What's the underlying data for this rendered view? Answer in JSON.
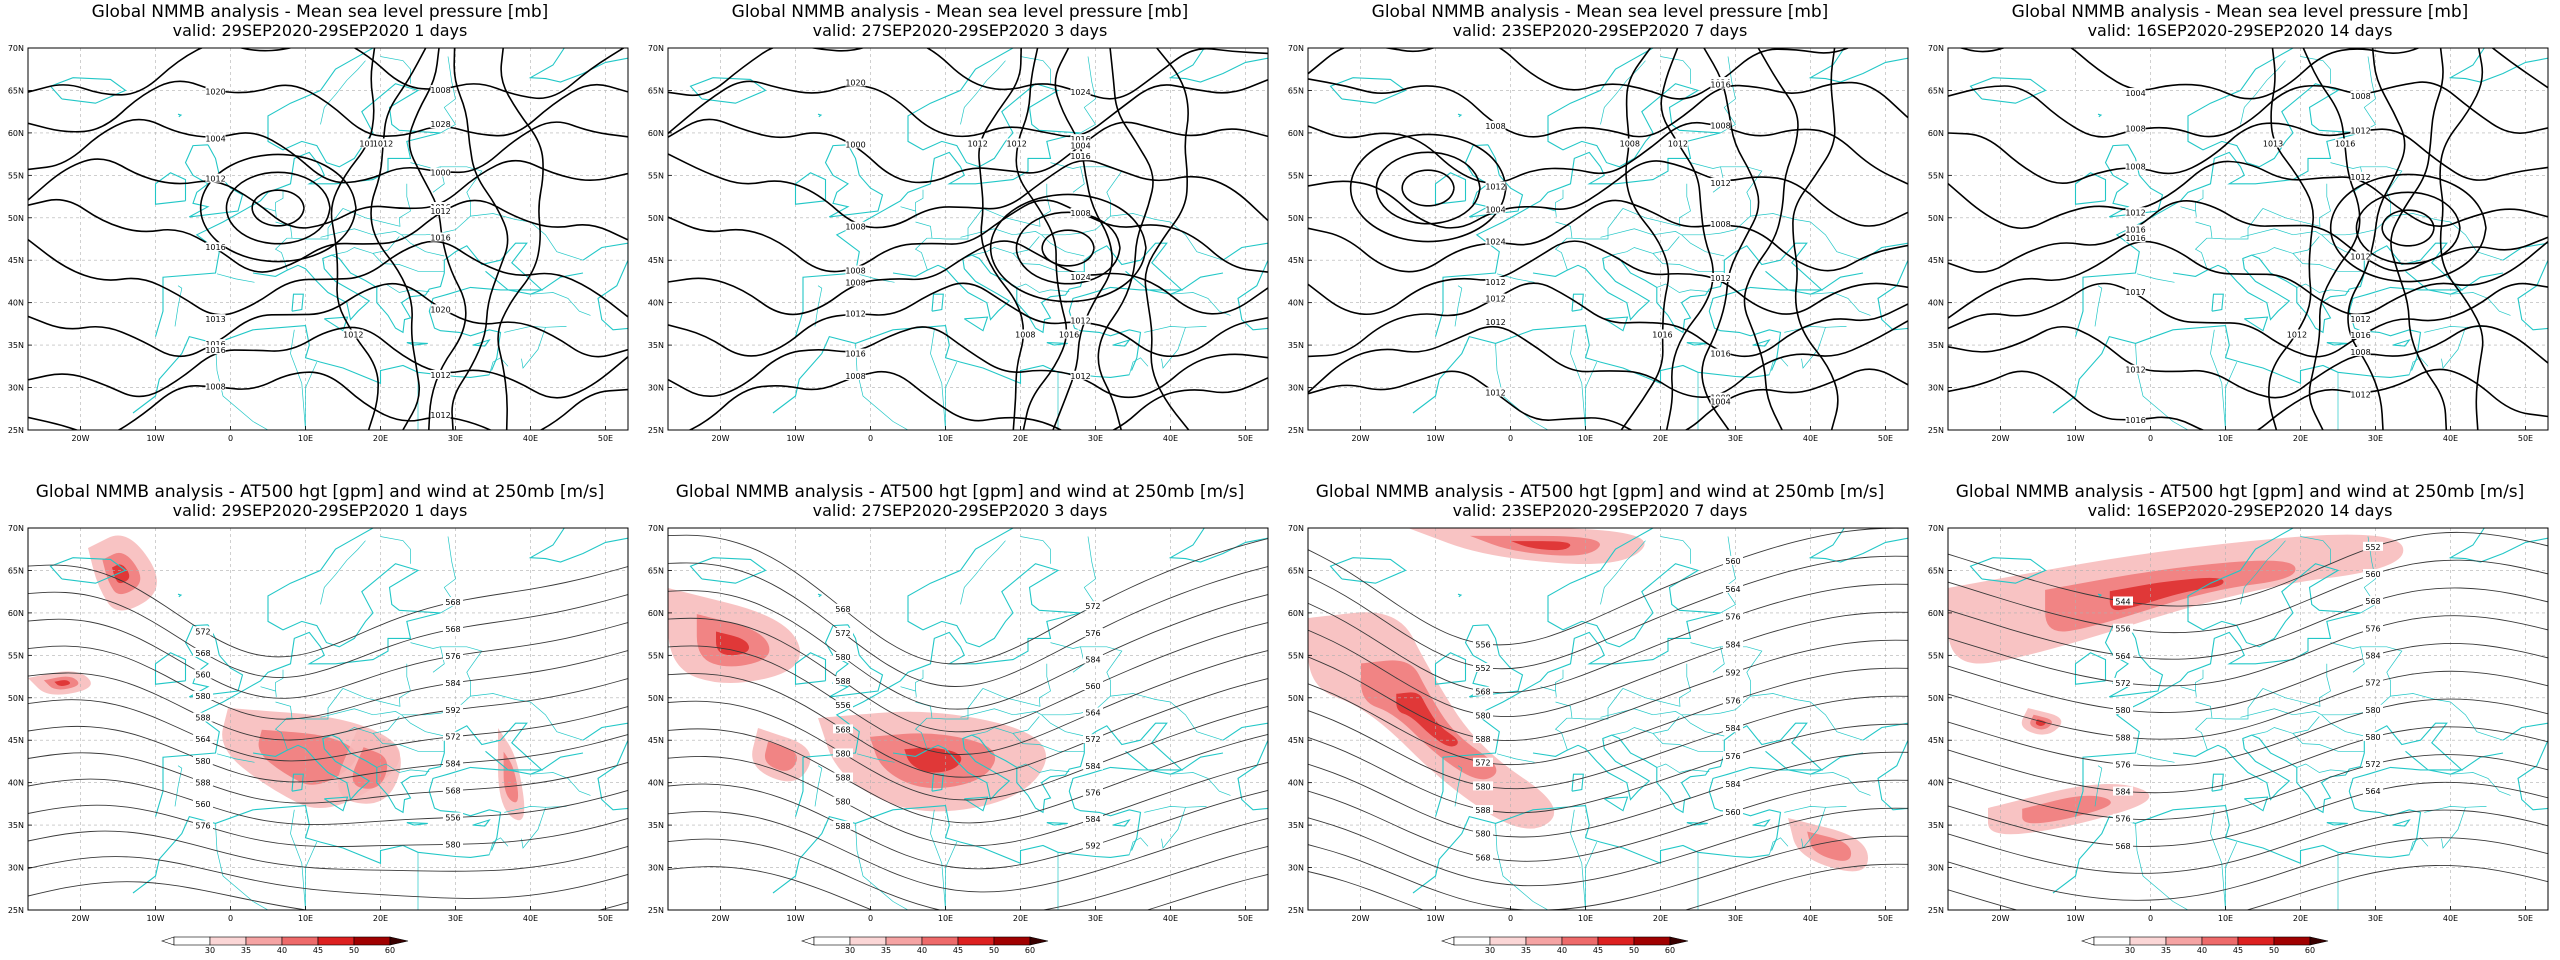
{
  "panels": [
    {
      "id": "p1",
      "title": "Global NMMB analysis - Mean sea level pressure [mb]",
      "subtitle": "valid: 29SEP2020-29SEP2020   1 days",
      "type": "mslp",
      "labels": [
        "1008",
        "1020",
        "1028",
        "1004",
        "1000",
        "1012",
        "1016",
        "1016",
        "1012",
        "1013",
        "1016",
        "1016",
        "1020",
        "1016",
        "1012",
        "1008",
        "1012",
        "1016",
        "1012",
        "1012"
      ]
    },
    {
      "id": "p2",
      "title": "Global NMMB analysis - Mean sea level pressure [mb]",
      "subtitle": "valid: 27SEP2020-29SEP2020   3 days",
      "type": "mslp",
      "labels": [
        "1024",
        "1020",
        "1016",
        "1000",
        "1004",
        "1008",
        "1016",
        "1008",
        "1008",
        "1008",
        "1024",
        "1012",
        "1012",
        "1016",
        "1012",
        "1008",
        "1012",
        "1008",
        "1012",
        "1016"
      ]
    },
    {
      "id": "p3",
      "title": "Global NMMB analysis - Mean sea level pressure [mb]",
      "subtitle": "valid: 23SEP2020-29SEP2020   7 days",
      "type": "mslp",
      "labels": [
        "1024",
        "1008",
        "1016",
        "1012",
        "1008",
        "1004",
        "1012",
        "1024",
        "1008",
        "1012",
        "1012",
        "1012",
        "1016",
        "1012",
        "1008",
        "1012",
        "1004",
        "1008",
        "1016",
        "1012"
      ]
    },
    {
      "id": "p4",
      "title": "Global NMMB analysis - Mean sea level pressure [mb]",
      "subtitle": "valid: 16SEP2020-29SEP2020   14 days",
      "type": "mslp",
      "labels": [
        "1004",
        "1008",
        "1008",
        "1008",
        "1012",
        "1012",
        "1012",
        "1016",
        "1012",
        "1016",
        "1012",
        "1017",
        "1016",
        "1012",
        "1008",
        "1016",
        "1012",
        "1013",
        "1012",
        "1016"
      ]
    },
    {
      "id": "p5",
      "title": "Global NMMB analysis - AT500 hgt [gpm] and wind at 250mb [m/s]",
      "subtitle": "valid: 29SEP2020-29SEP2020   1 days",
      "type": "z500",
      "labels": [
        "572",
        "568",
        "568",
        "568",
        "560",
        "576",
        "580",
        "584",
        "588",
        "592",
        "564",
        "572",
        "580",
        "584",
        "588",
        "568",
        "560",
        "556",
        "576",
        "580"
      ]
    },
    {
      "id": "p6",
      "title": "Global NMMB analysis - AT500 hgt [gpm] and wind at 250mb [m/s]",
      "subtitle": "valid: 27SEP2020-29SEP2020   3 days",
      "type": "z500",
      "labels": [
        "568",
        "572",
        "572",
        "576",
        "580",
        "584",
        "588",
        "560",
        "556",
        "564",
        "568",
        "572",
        "580",
        "584",
        "588",
        "576",
        "580",
        "584",
        "588",
        "592"
      ]
    },
    {
      "id": "p7",
      "title": "Global NMMB analysis - AT500 hgt [gpm] and wind at 250mb [m/s]",
      "subtitle": "valid: 23SEP2020-29SEP2020   7 days",
      "type": "z500",
      "labels": [
        "556",
        "560",
        "552",
        "564",
        "568",
        "576",
        "580",
        "584",
        "588",
        "592",
        "572",
        "576",
        "580",
        "584",
        "588",
        "576",
        "580",
        "584",
        "568",
        "560"
      ]
    },
    {
      "id": "p8",
      "title": "Global NMMB analysis - AT500 hgt [gpm] and wind at 250mb [m/s]",
      "subtitle": "valid: 16SEP2020-29SEP2020   14 days",
      "type": "z500",
      "labels": [
        "544",
        "552",
        "556",
        "560",
        "564",
        "568",
        "572",
        "576",
        "580",
        "584",
        "588",
        "572",
        "576",
        "580",
        "584",
        "580",
        "576",
        "572",
        "568",
        "564"
      ]
    }
  ],
  "lat_ticks": [
    "70N",
    "65N",
    "60N",
    "55N",
    "50N",
    "45N",
    "40N",
    "35N",
    "30N",
    "25N"
  ],
  "lon_ticks": [
    "20W",
    "10W",
    "0",
    "10E",
    "20E",
    "30E",
    "40E",
    "50E"
  ],
  "colorbar_ticks": [
    "30",
    "35",
    "40",
    "45",
    "50",
    "60"
  ],
  "colors": {
    "coast": "#22c7c7",
    "mslp_contour": "#000000",
    "z500_contour": "#3a3a3a",
    "wind_light": "#f7b8b8",
    "wind_med": "#ee6a6a",
    "wind_strong": "#d81818",
    "grid": "#b0b0b0"
  }
}
